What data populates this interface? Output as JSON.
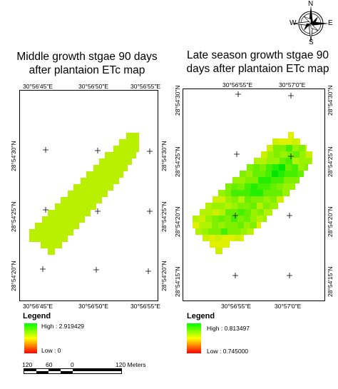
{
  "north_arrow": {
    "N": "N",
    "E": "E",
    "S": "S",
    "W": "W"
  },
  "left_map": {
    "title_line1": "Middle growth stgae 90 days",
    "title_line2": "after plantaion ETc map",
    "top_ticks": [
      "30°56'45\"E",
      "30°56'50\"E",
      "30°56'55\"E"
    ],
    "bottom_ticks": [
      "30°56'45\"E",
      "30°56'50\"E",
      "30°56'55\"E"
    ],
    "left_ticks": [
      "28°54'30\"N",
      "28°54'25\"N",
      "28°54'20\"N"
    ],
    "right_ticks": [
      "28°54'30\"N",
      "28°54'25\"N",
      "28°54'20\"N"
    ],
    "raster_color": "#b8f000",
    "legend": {
      "title": "Legend",
      "high": "High : 2.919429",
      "low": "Low : 0",
      "colors": [
        "#00ff00",
        "#ffff00",
        "#ff0000"
      ]
    }
  },
  "right_map": {
    "title_line1": "Late season growth stgae 90",
    "title_line2": "days after plantaion ETc map",
    "top_ticks": [
      "30°56'55\"E",
      "30°57'0\"E"
    ],
    "bottom_ticks": [
      "30°56'55\"E",
      "30°57'0\"E"
    ],
    "left_ticks": [
      "28°54'30\"N",
      "28°54'25\"N",
      "28°54'20\"N",
      "28°54'15\"N"
    ],
    "right_ticks": [
      "28°54'30\"N",
      "28°54'25\"N",
      "28°54'20\"N",
      "28°54'15\"N"
    ],
    "legend": {
      "title": "Legend",
      "high": "High : 0.813497",
      "low": "Low : 0.745000",
      "colors": [
        "#00ff00",
        "#ffff00",
        "#ff0000"
      ]
    }
  },
  "scale_bar": {
    "labels": [
      "120",
      "60",
      "0",
      "120 Meters"
    ]
  }
}
